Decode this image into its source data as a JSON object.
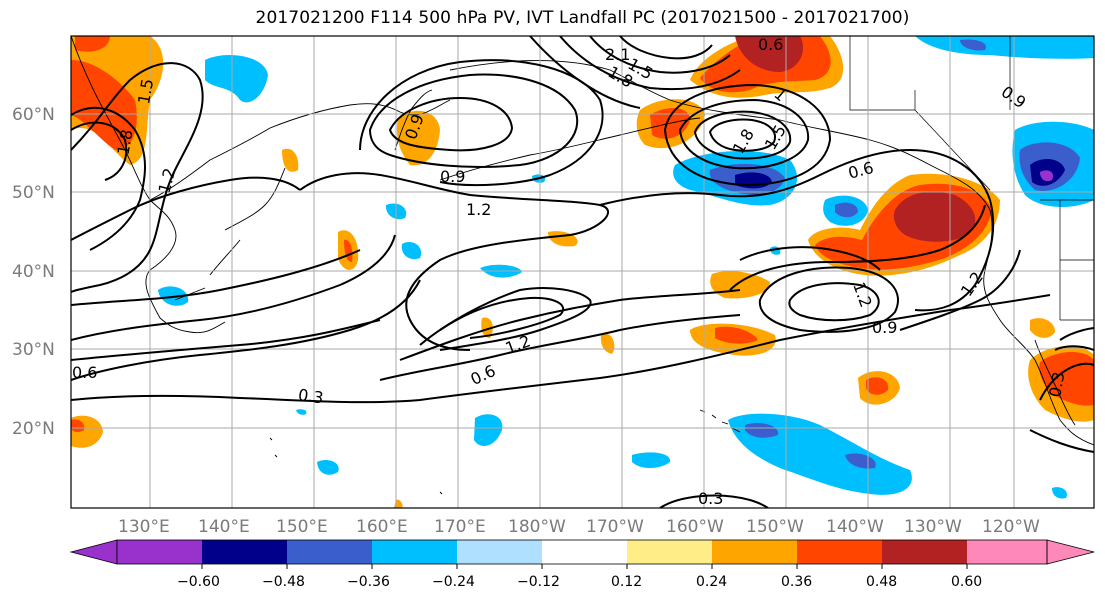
{
  "title": "2017021200 F114 500 hPa PV, IVT Landfall PC (2017021500 - 2017021700)",
  "map": {
    "lat_labels": [
      "60°N",
      "50°N",
      "40°N",
      "30°N",
      "20°N"
    ],
    "lon_labels": [
      "130°E",
      "140°E",
      "150°E",
      "160°E",
      "170°E",
      "180°W",
      "170°W",
      "160°W",
      "150°W",
      "140°W",
      "130°W",
      "120°W"
    ],
    "contour_labels": [
      "1.5",
      "1.8",
      "2.1",
      "1.8",
      "1.5",
      "1",
      "1.8",
      "1.5",
      "0.6",
      "1.2",
      "0.9",
      "0.9",
      "1.2",
      "0.6",
      "1.2",
      "0.9",
      "1.2",
      "0.6",
      "0.3",
      "0.3",
      "0.6",
      "0.9",
      "0.3",
      "1.2"
    ],
    "fill_colors": {
      "dark_red": "#b22222",
      "red_orange": "#ff4500",
      "orange": "#ffa500",
      "light_yellow": "#ffee88",
      "light_blue": "#b0e0ff",
      "sky_blue": "#00bfff",
      "royal_blue": "#3a5fcd",
      "navy": "#00008b",
      "purple": "#9932cc"
    }
  },
  "colorbar": {
    "colors": [
      "#9932cc",
      "#00008b",
      "#3a5fcd",
      "#00bfff",
      "#b0e0ff",
      "#ffffff",
      "#ffee88",
      "#ffa500",
      "#ff4500",
      "#b22222",
      "#ff88bb"
    ],
    "ticks": [
      "−0.60",
      "−0.48",
      "−0.36",
      "−0.24",
      "−0.12",
      "0.12",
      "0.24",
      "0.36",
      "0.48",
      "0.60"
    ]
  }
}
